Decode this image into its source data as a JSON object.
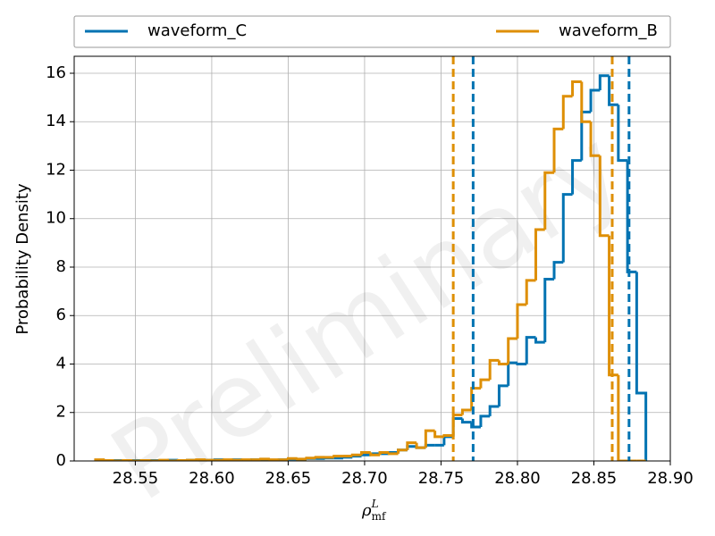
{
  "chart_data": {
    "type": "histogram",
    "watermark": "Preliminary",
    "xlabel": {
      "base": "ρ",
      "sup": "L",
      "sub": "mf"
    },
    "ylabel": "Probability Density",
    "legend": "top-expand",
    "grid": true,
    "bins": [
      28.524,
      28.53,
      28.536,
      28.542,
      28.548,
      28.554,
      28.56,
      28.566,
      28.572,
      28.578,
      28.584,
      28.59,
      28.596,
      28.602,
      28.608,
      28.614,
      28.62,
      28.626,
      28.632,
      28.638,
      28.644,
      28.65,
      28.656,
      28.662,
      28.668,
      28.674,
      28.68,
      28.686,
      28.692,
      28.698,
      28.704,
      28.71,
      28.716,
      28.722,
      28.728,
      28.734,
      28.74,
      28.746,
      28.752,
      28.758,
      28.764,
      28.77,
      28.776,
      28.782,
      28.788,
      28.794,
      28.8,
      28.806,
      28.812,
      28.818,
      28.824,
      28.83,
      28.836,
      28.842,
      28.848,
      28.854,
      28.86,
      28.866,
      28.872,
      28.878,
      28.884
    ],
    "series": [
      {
        "name": "waveform_C",
        "color": "#0173b2",
        "values": [
          0.03,
          0,
          0.02,
          0,
          0.02,
          0,
          0.02,
          0,
          0.03,
          0.02,
          0.03,
          0.02,
          0.03,
          0.05,
          0.03,
          0.05,
          0.03,
          0.05,
          0.05,
          0.03,
          0.05,
          0.08,
          0.07,
          0.1,
          0.1,
          0.12,
          0.12,
          0.15,
          0.2,
          0.25,
          0.3,
          0.3,
          0.35,
          0.45,
          0.6,
          0.55,
          0.65,
          0.65,
          1.0,
          1.75,
          1.6,
          1.4,
          1.85,
          2.25,
          3.1,
          4.05,
          4.0,
          5.1,
          4.9,
          7.5,
          8.2,
          11.0,
          12.4,
          14.4,
          15.3,
          15.9,
          14.7,
          12.4,
          7.8,
          2.8
        ],
        "quantiles": [
          28.771,
          28.873
        ]
      },
      {
        "name": "waveform_B",
        "color": "#de8f05",
        "values": [
          0.05,
          0.02,
          0,
          0.02,
          0,
          0.02,
          0,
          0.03,
          0,
          0.02,
          0.03,
          0.05,
          0.03,
          0.03,
          0.05,
          0.03,
          0.05,
          0.05,
          0.08,
          0.05,
          0.05,
          0.1,
          0.08,
          0.12,
          0.15,
          0.15,
          0.2,
          0.2,
          0.25,
          0.35,
          0.25,
          0.35,
          0.3,
          0.45,
          0.75,
          0.55,
          1.25,
          1.0,
          1.05,
          1.9,
          2.1,
          3.0,
          3.35,
          4.15,
          4.0,
          5.05,
          6.45,
          7.45,
          9.55,
          11.9,
          13.7,
          15.05,
          15.65,
          14.0,
          12.6,
          9.3,
          3.55,
          0,
          0,
          0
        ],
        "quantiles": [
          28.758,
          28.862
        ]
      }
    ],
    "xlim": [
      28.51,
      28.9
    ],
    "ylim": [
      0,
      16.7
    ],
    "xticks": [
      28.55,
      {
        "value": 28.6,
        "label": "28.60"
      },
      28.65,
      {
        "value": 28.7,
        "label": "28.70"
      },
      28.75,
      {
        "value": 28.8,
        "label": "28.80"
      },
      28.85,
      {
        "value": 28.9,
        "label": "28.90"
      }
    ],
    "yticks": [
      0,
      2,
      4,
      6,
      8,
      10,
      12,
      14,
      16
    ]
  }
}
